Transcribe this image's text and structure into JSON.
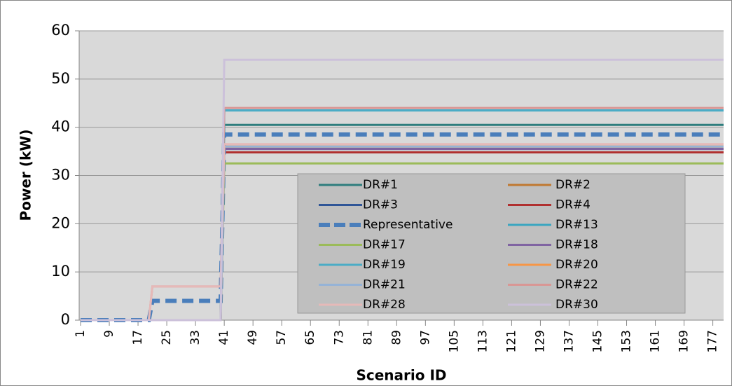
{
  "chart_data": {
    "type": "line",
    "x_label": "Scenario ID",
    "y_label": "Power (kW)",
    "x": [
      1,
      20,
      21,
      40,
      41,
      180
    ],
    "xlim": [
      1,
      180
    ],
    "xticks": [
      1,
      9,
      17,
      25,
      33,
      41,
      49,
      57,
      65,
      73,
      81,
      89,
      97,
      105,
      113,
      121,
      129,
      137,
      145,
      153,
      161,
      169,
      177
    ],
    "ylim": [
      0,
      60
    ],
    "yticks": [
      0,
      10,
      20,
      30,
      40,
      50,
      60
    ],
    "grid": true,
    "series": [
      {
        "name": "DR#1",
        "color": "#2e7d7d",
        "values": [
          0,
          0,
          0,
          0,
          40.5,
          40.5
        ]
      },
      {
        "name": "DR#2",
        "color": "#c07830",
        "values": [
          0,
          0,
          0,
          0,
          36,
          36
        ]
      },
      {
        "name": "DR#3",
        "color": "#2f5597",
        "values": [
          0,
          0,
          0,
          0,
          35.5,
          35.5
        ]
      },
      {
        "name": "DR#4",
        "color": "#b03030",
        "values": [
          0,
          0,
          0,
          0,
          34.8,
          34.8
        ]
      },
      {
        "name": "Representative",
        "color": "#4a7ebb",
        "dashed": true,
        "values": [
          0,
          0,
          4,
          4,
          38.5,
          38.5
        ]
      },
      {
        "name": "DR#13",
        "color": "#3aa6c0",
        "values": [
          0,
          0,
          0,
          0,
          43.5,
          43.5
        ]
      },
      {
        "name": "DR#17",
        "color": "#9bbb59",
        "values": [
          0,
          0,
          0,
          0,
          32.5,
          32.5
        ]
      },
      {
        "name": "DR#18",
        "color": "#8064a2",
        "values": [
          0,
          0,
          0,
          0,
          35.5,
          35.5
        ]
      },
      {
        "name": "DR#19",
        "color": "#4bacc6",
        "values": [
          0,
          0,
          0,
          0,
          43.5,
          43.5
        ]
      },
      {
        "name": "DR#20",
        "color": "#f79646",
        "values": [
          0,
          0,
          0,
          0,
          36,
          36
        ]
      },
      {
        "name": "DR#21",
        "color": "#95b3d7",
        "values": [
          0,
          0,
          0,
          0,
          36,
          36
        ]
      },
      {
        "name": "DR#22",
        "color": "#d99694",
        "values": [
          0,
          0,
          7,
          7,
          44,
          44
        ]
      },
      {
        "name": "DR#28",
        "color": "#e6b9b8",
        "values": [
          0,
          0,
          7,
          7,
          36.5,
          36.5
        ]
      },
      {
        "name": "DR#30",
        "color": "#ccc1da",
        "values": [
          0,
          0,
          0,
          0,
          54,
          54
        ]
      }
    ]
  }
}
